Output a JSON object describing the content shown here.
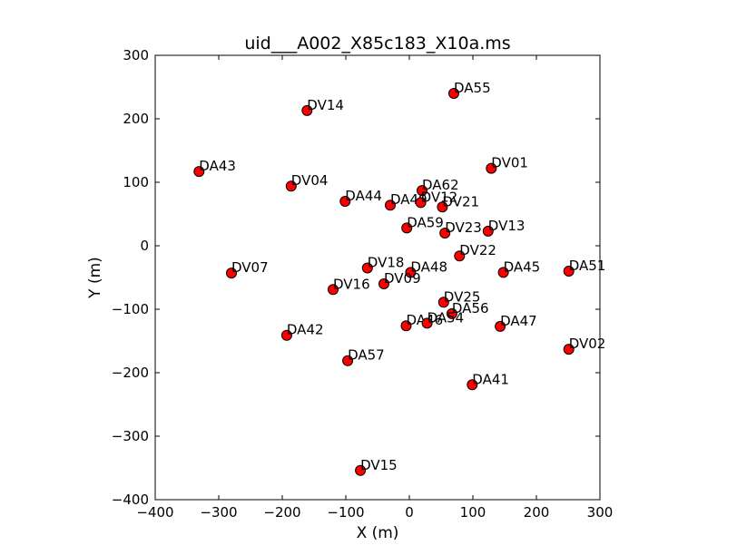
{
  "chart_data": {
    "type": "scatter",
    "title": "uid___A002_X85c183_X10a.ms",
    "xlabel": "X (m)",
    "ylabel": "Y (m)",
    "xlim": [
      -400,
      300
    ],
    "ylim": [
      -400,
      300
    ],
    "xticks": [
      -400,
      -300,
      -200,
      -100,
      0,
      100,
      200,
      300
    ],
    "yticks": [
      -400,
      -300,
      -200,
      -100,
      0,
      100,
      200,
      300
    ],
    "xtick_labels": [
      "−400",
      "−300",
      "−200",
      "−100",
      "0",
      "100",
      "200",
      "300"
    ],
    "ytick_labels": [
      "−400",
      "−300",
      "−200",
      "−100",
      "0",
      "100",
      "200",
      "300"
    ],
    "grid": false,
    "marker_color": "#ff0000",
    "points": [
      {
        "label": "DA55",
        "x": 70,
        "y": 240
      },
      {
        "label": "DV14",
        "x": -161,
        "y": 213
      },
      {
        "label": "DV01",
        "x": 129,
        "y": 122
      },
      {
        "label": "DA43",
        "x": -331,
        "y": 117
      },
      {
        "label": "DV04",
        "x": -186,
        "y": 94
      },
      {
        "label": "DA62",
        "x": 20,
        "y": 87
      },
      {
        "label": "DA44",
        "x": -101,
        "y": 70
      },
      {
        "label": "DA49",
        "x": -30,
        "y": 64
      },
      {
        "label": "DV12",
        "x": 18,
        "y": 68
      },
      {
        "label": "DV21",
        "x": 52,
        "y": 61
      },
      {
        "label": "DA59",
        "x": -4,
        "y": 28
      },
      {
        "label": "DV23",
        "x": 56,
        "y": 20
      },
      {
        "label": "DV13",
        "x": 124,
        "y": 23
      },
      {
        "label": "DV22",
        "x": 79,
        "y": -16
      },
      {
        "label": "DV07",
        "x": -280,
        "y": -43
      },
      {
        "label": "DV18",
        "x": -66,
        "y": -35
      },
      {
        "label": "DA48",
        "x": 2,
        "y": -42
      },
      {
        "label": "DA45",
        "x": 148,
        "y": -42
      },
      {
        "label": "DA51",
        "x": 251,
        "y": -40
      },
      {
        "label": "DV16",
        "x": -120,
        "y": -69
      },
      {
        "label": "DV09",
        "x": -40,
        "y": -60
      },
      {
        "label": "DV25",
        "x": 54,
        "y": -89
      },
      {
        "label": "DA56",
        "x": 67,
        "y": -107
      },
      {
        "label": "DA46",
        "x": -5,
        "y": -126
      },
      {
        "label": "DA54",
        "x": 28,
        "y": -122
      },
      {
        "label": "DA47",
        "x": 143,
        "y": -127
      },
      {
        "label": "DA42",
        "x": -193,
        "y": -141
      },
      {
        "label": "DV02",
        "x": 251,
        "y": -163
      },
      {
        "label": "DA57",
        "x": -97,
        "y": -181
      },
      {
        "label": "DA41",
        "x": 99,
        "y": -219
      },
      {
        "label": "DV15",
        "x": -77,
        "y": -354
      }
    ]
  }
}
